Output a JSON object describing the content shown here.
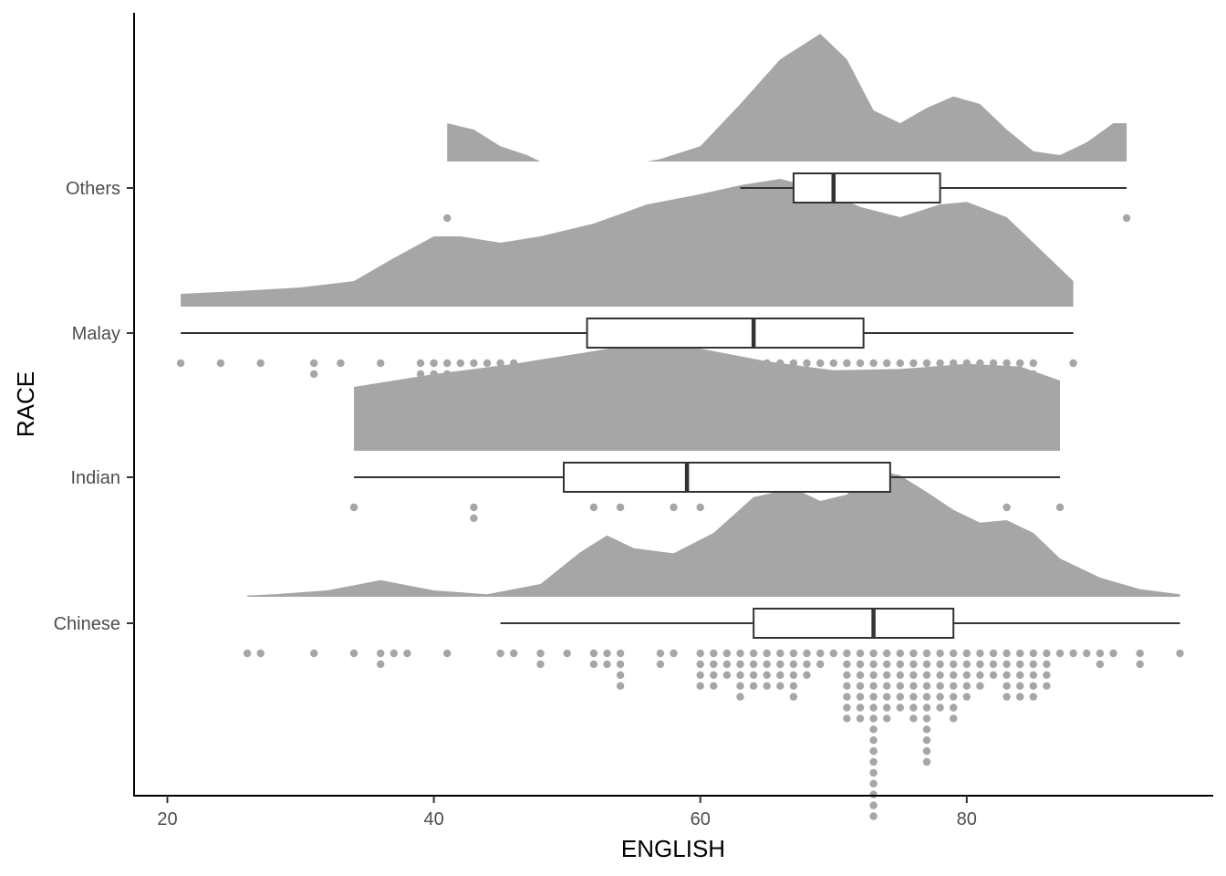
{
  "chart_data": {
    "type": "raincloud",
    "xlabel": "ENGLISH",
    "ylabel": "RACE",
    "xlim": [
      17.5,
      98.5
    ],
    "x_ticks": [
      20,
      40,
      60,
      80
    ],
    "x_tick_labels": [
      "20",
      "40",
      "60",
      "80"
    ],
    "grid": false,
    "legend": "none",
    "colors": {
      "fill": "#a6a6a6",
      "box_line": "#333333",
      "axis": "#000000"
    },
    "categories": [
      "Chinese",
      "Indian",
      "Malay",
      "Others"
    ],
    "groups": [
      {
        "name": "Chinese",
        "box": {
          "min": 45,
          "q1": 64,
          "median": 73,
          "q3": 79,
          "max": 96
        },
        "density": [
          [
            26,
            0.01
          ],
          [
            28,
            0.02
          ],
          [
            32,
            0.05
          ],
          [
            36,
            0.13
          ],
          [
            40,
            0.05
          ],
          [
            44,
            0.02
          ],
          [
            48,
            0.1
          ],
          [
            51,
            0.35
          ],
          [
            53,
            0.48
          ],
          [
            55,
            0.38
          ],
          [
            58,
            0.34
          ],
          [
            61,
            0.5
          ],
          [
            64,
            0.78
          ],
          [
            67,
            0.85
          ],
          [
            69,
            0.75
          ],
          [
            71,
            0.8
          ],
          [
            73,
            1.0
          ],
          [
            75,
            0.95
          ],
          [
            77,
            0.82
          ],
          [
            79,
            0.68
          ],
          [
            81,
            0.58
          ],
          [
            83,
            0.6
          ],
          [
            85,
            0.5
          ],
          [
            87,
            0.3
          ],
          [
            90,
            0.15
          ],
          [
            93,
            0.06
          ],
          [
            96,
            0.02
          ]
        ],
        "points": [
          26,
          27,
          31,
          34,
          36,
          36,
          37,
          38,
          41,
          45,
          46,
          48,
          48,
          50,
          52,
          52,
          53,
          53,
          54,
          54,
          54,
          54,
          57,
          57,
          58,
          60,
          60,
          60,
          60,
          61,
          61,
          61,
          61,
          62,
          62,
          62,
          63,
          63,
          63,
          63,
          63,
          64,
          64,
          64,
          64,
          65,
          65,
          65,
          65,
          66,
          66,
          66,
          66,
          67,
          67,
          67,
          67,
          67,
          68,
          68,
          68,
          69,
          69,
          70,
          71,
          71,
          71,
          71,
          71,
          71,
          71,
          72,
          72,
          72,
          72,
          72,
          72,
          72,
          73,
          73,
          73,
          73,
          73,
          73,
          73,
          73,
          73,
          73,
          73,
          73,
          73,
          73,
          73,
          73,
          74,
          74,
          74,
          74,
          74,
          74,
          74,
          75,
          75,
          75,
          75,
          75,
          75,
          76,
          76,
          76,
          76,
          76,
          76,
          76,
          77,
          77,
          77,
          77,
          77,
          77,
          77,
          77,
          77,
          77,
          77,
          78,
          78,
          78,
          78,
          78,
          78,
          79,
          79,
          79,
          79,
          79,
          79,
          79,
          80,
          80,
          80,
          80,
          80,
          81,
          81,
          81,
          81,
          82,
          82,
          82,
          83,
          83,
          83,
          83,
          83,
          84,
          84,
          84,
          84,
          84,
          85,
          85,
          85,
          85,
          85,
          86,
          86,
          86,
          86,
          87,
          88,
          89,
          90,
          90,
          91,
          93,
          93,
          96
        ]
      },
      {
        "name": "Indian",
        "box": {
          "min": 34,
          "q1": 49.75,
          "median": 59,
          "q3": 74.25,
          "max": 87
        },
        "density": [
          [
            34,
            0.5
          ],
          [
            40,
            0.6
          ],
          [
            46,
            0.68
          ],
          [
            52,
            0.78
          ],
          [
            56,
            0.85
          ],
          [
            60,
            0.8
          ],
          [
            65,
            0.7
          ],
          [
            70,
            0.63
          ],
          [
            75,
            0.64
          ],
          [
            80,
            0.68
          ],
          [
            84,
            0.66
          ],
          [
            87,
            0.55
          ]
        ],
        "points": [
          34,
          43,
          43,
          52,
          54,
          58,
          60,
          64,
          78,
          83,
          87
        ]
      },
      {
        "name": "Malay",
        "box": {
          "min": 21,
          "q1": 51.5,
          "median": 64,
          "q3": 72.25,
          "max": 88
        },
        "density": [
          [
            21,
            0.1
          ],
          [
            25,
            0.12
          ],
          [
            30,
            0.15
          ],
          [
            34,
            0.2
          ],
          [
            37,
            0.38
          ],
          [
            40,
            0.55
          ],
          [
            42,
            0.55
          ],
          [
            45,
            0.5
          ],
          [
            48,
            0.55
          ],
          [
            52,
            0.65
          ],
          [
            56,
            0.8
          ],
          [
            60,
            0.88
          ],
          [
            63,
            0.95
          ],
          [
            66,
            1.0
          ],
          [
            69,
            0.92
          ],
          [
            72,
            0.78
          ],
          [
            75,
            0.7
          ],
          [
            78,
            0.8
          ],
          [
            80,
            0.82
          ],
          [
            83,
            0.7
          ],
          [
            86,
            0.4
          ],
          [
            88,
            0.2
          ]
        ],
        "points": [
          21,
          24,
          27,
          31,
          31,
          33,
          36,
          39,
          39,
          40,
          40,
          40,
          41,
          41,
          42,
          43,
          44,
          45,
          46,
          50,
          50,
          50,
          52,
          52,
          53,
          54,
          55,
          55,
          55,
          55,
          56,
          56,
          56,
          56,
          57,
          57,
          57,
          57,
          58,
          58,
          59,
          59,
          59,
          60,
          61,
          61,
          62,
          62,
          63,
          63,
          64,
          64,
          64,
          64,
          64,
          64,
          65,
          65,
          65,
          65,
          66,
          66,
          66,
          66,
          66,
          67,
          67,
          67,
          67,
          68,
          68,
          68,
          69,
          69,
          69,
          70,
          70,
          70,
          70,
          71,
          71,
          71,
          72,
          72,
          73,
          73,
          73,
          74,
          74,
          75,
          75,
          76,
          77,
          77,
          77,
          78,
          78,
          78,
          78,
          78,
          79,
          79,
          80,
          80,
          80,
          81,
          81,
          82,
          82,
          82,
          83,
          84,
          85,
          85,
          88
        ]
      },
      {
        "name": "Others",
        "box": {
          "min": 63,
          "q1": 67,
          "median": 70,
          "q3": 78,
          "max": 92
        },
        "density": [
          [
            41,
            0.3
          ],
          [
            43,
            0.25
          ],
          [
            45,
            0.12
          ],
          [
            47,
            0.05
          ],
          [
            48,
            0.0
          ],
          [
            56,
            0.0
          ],
          [
            57,
            0.02
          ],
          [
            60,
            0.12
          ],
          [
            63,
            0.45
          ],
          [
            66,
            0.8
          ],
          [
            69,
            1.0
          ],
          [
            71,
            0.8
          ],
          [
            73,
            0.4
          ],
          [
            75,
            0.3
          ],
          [
            77,
            0.42
          ],
          [
            79,
            0.51
          ],
          [
            81,
            0.45
          ],
          [
            83,
            0.25
          ],
          [
            85,
            0.08
          ],
          [
            87,
            0.05
          ],
          [
            89,
            0.15
          ],
          [
            91,
            0.3
          ],
          [
            92,
            0.3
          ]
        ],
        "points": [
          41,
          63,
          67,
          68,
          70,
          71,
          78,
          81,
          92
        ]
      }
    ]
  }
}
